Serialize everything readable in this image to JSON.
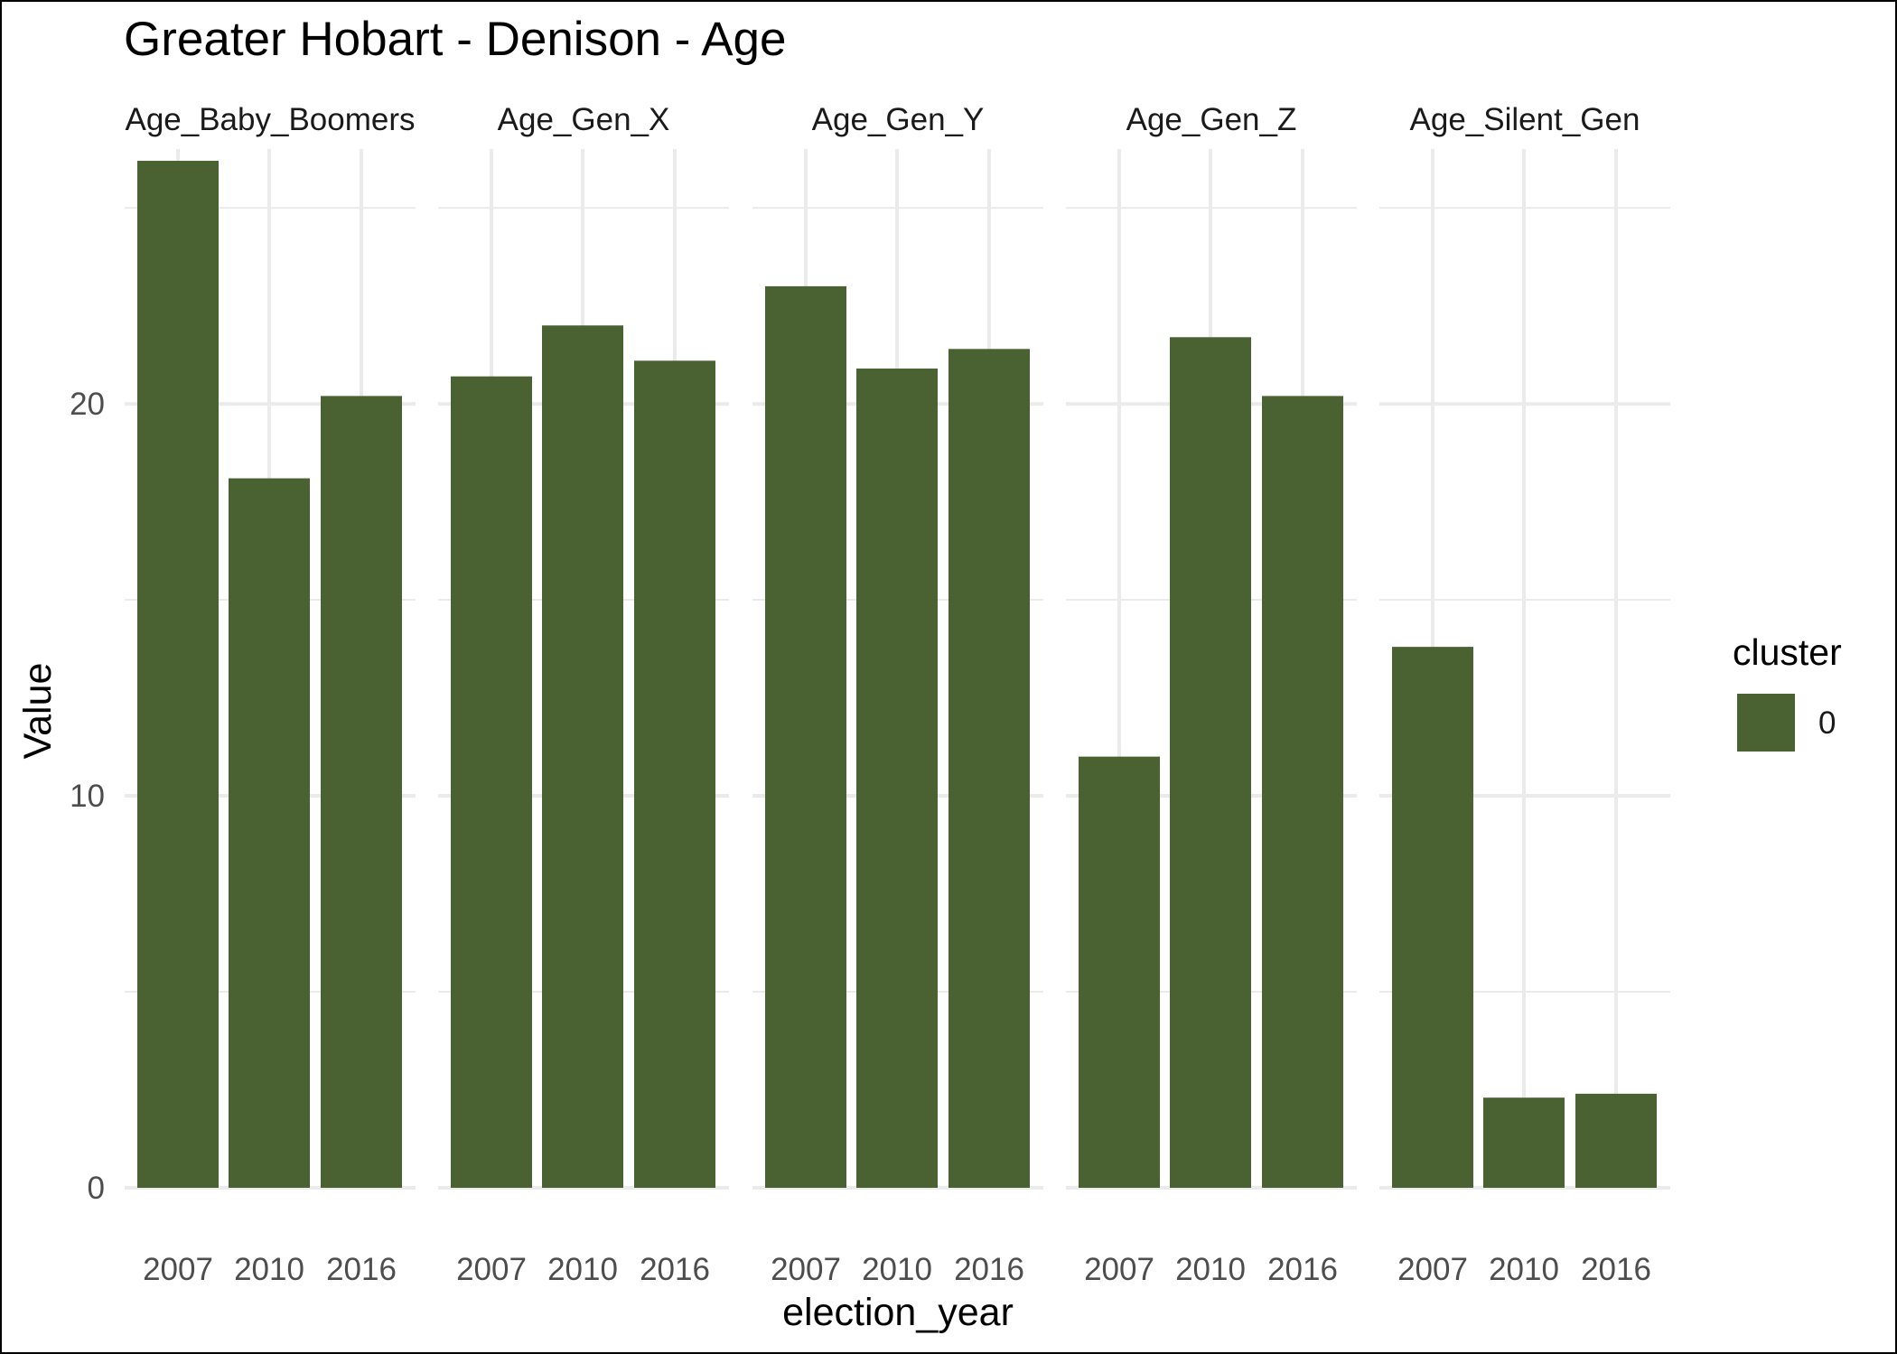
{
  "chart_data": {
    "type": "bar",
    "title": "Greater Hobart - Denison - Age",
    "xlabel": "election_year",
    "ylabel": "Value",
    "ylim": [
      0,
      26.5
    ],
    "yticks": [
      0,
      10,
      20
    ],
    "categories": [
      "2007",
      "2010",
      "2016"
    ],
    "facets": [
      {
        "name": "Age_Baby_Boomers",
        "values": [
          26.2,
          18.1,
          20.2
        ]
      },
      {
        "name": "Age_Gen_X",
        "values": [
          20.7,
          22.0,
          21.1
        ]
      },
      {
        "name": "Age_Gen_Y",
        "values": [
          23.0,
          20.9,
          21.4
        ]
      },
      {
        "name": "Age_Gen_Z",
        "values": [
          11.0,
          21.7,
          20.2
        ]
      },
      {
        "name": "Age_Silent_Gen",
        "values": [
          13.8,
          2.3,
          2.4
        ]
      }
    ],
    "legend": {
      "title": "cluster",
      "entries": [
        "0"
      ],
      "position": "right"
    },
    "grid": true,
    "colors": {
      "bar": "#4a6132",
      "grid": "#ebebeb"
    }
  }
}
